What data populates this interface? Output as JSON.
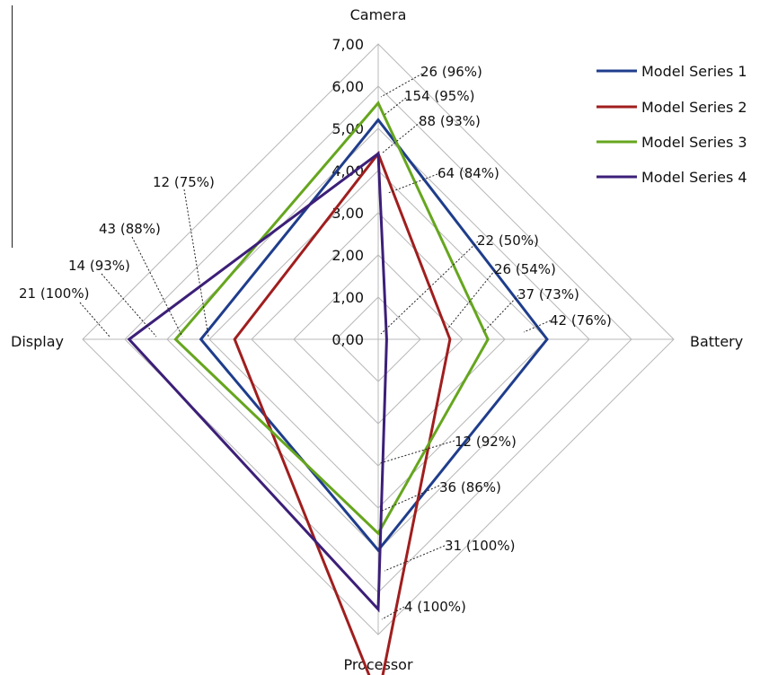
{
  "chart_data": {
    "type": "radar",
    "axes": [
      "Camera",
      "Battery",
      "Processor",
      "Display"
    ],
    "rmin": 0,
    "rmax": 7,
    "grid": true,
    "tick_labels": [
      "0,00",
      "1,00",
      "2,00",
      "3,00",
      "4,00",
      "5,00",
      "6,00",
      "7,00"
    ],
    "legend_position": "top-right",
    "series": [
      {
        "name": "Model Series 1",
        "color": "#1f3d8c",
        "values": [
          5.2,
          4.0,
          5.0,
          4.2
        ]
      },
      {
        "name": "Model Series 2",
        "color": "#a01e1e",
        "values": [
          4.4,
          1.7,
          8.5,
          3.4
        ]
      },
      {
        "name": "Model Series 3",
        "color": "#66a61e",
        "values": [
          5.6,
          2.6,
          4.6,
          4.8
        ]
      },
      {
        "name": "Model Series 4",
        "color": "#3c1f78",
        "values": [
          4.4,
          0.2,
          6.4,
          5.9
        ]
      }
    ],
    "annotations": [
      "26 (96%)",
      "154 (95%)",
      "88 (93%)",
      "64 (84%)",
      "22 (50%)",
      "26 (54%)",
      "37 (73%)",
      "42 (76%)",
      "12 (92%)",
      "36 (86%)",
      "31 (100%)",
      "4 (100%)",
      "12 (75%)",
      "43 (88%)",
      "14 (93%)",
      "21 (100%)"
    ]
  }
}
